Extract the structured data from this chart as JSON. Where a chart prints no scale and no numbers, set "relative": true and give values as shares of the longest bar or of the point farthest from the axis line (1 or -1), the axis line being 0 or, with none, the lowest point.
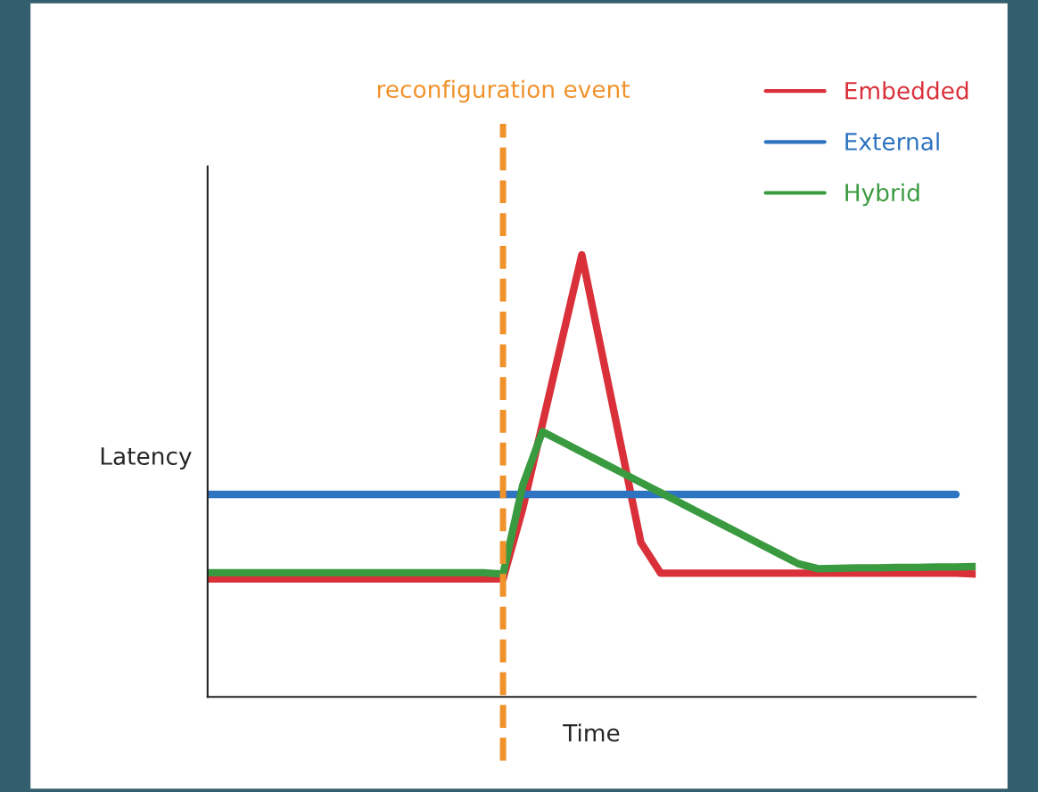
{
  "chart_data": {
    "type": "line",
    "relative": true,
    "xlabel": "Time",
    "ylabel": "Latency",
    "legend": "top right",
    "line_style": "solid",
    "categories": [
      null,
      null,
      null,
      null,
      null,
      null,
      null,
      null,
      null,
      null,
      null,
      null,
      null,
      null,
      null,
      null,
      null,
      null,
      null,
      null,
      null,
      null,
      null,
      null,
      null,
      null,
      null,
      null,
      null,
      null,
      null,
      null,
      null,
      null,
      null,
      null,
      null,
      null,
      null,
      null
    ],
    "series": [
      {
        "name": "Embedded",
        "color": "#d9303a",
        "values": [
          0.267,
          0.267,
          0.267,
          0.267,
          0.267,
          0.267,
          0.267,
          0.267,
          0.267,
          0.267,
          0.267,
          0.267,
          0.267,
          0.267,
          0.267,
          0.267,
          0.426,
          0.617,
          0.809,
          1,
          0.782,
          0.566,
          0.349,
          0.28,
          0.28,
          0.28,
          0.28,
          0.28,
          0.28,
          0.28,
          0.28,
          0.28,
          0.28,
          0.28,
          0.28,
          0.28,
          0.28,
          0.28,
          0.28,
          0.278
        ]
      },
      {
        "name": "External",
        "color": "#2f74c0",
        "values": [
          0.458,
          0.458,
          0.458,
          0.458,
          0.458,
          0.458,
          0.458,
          0.458,
          0.458,
          0.458,
          0.458,
          0.458,
          0.458,
          0.458,
          0.458,
          0.458,
          0.458,
          0.458,
          0.458,
          0.458,
          0.458,
          0.458,
          0.458,
          0.458,
          0.458,
          0.458,
          0.458,
          0.458,
          0.458,
          0.458,
          0.458,
          0.458,
          0.458,
          0.458,
          0.458,
          0.458,
          0.458,
          0.458,
          0.458,
          null
        ]
      },
      {
        "name": "Hybrid",
        "color": "#3a9a3f",
        "values": [
          0.281,
          0.281,
          0.281,
          0.281,
          0.281,
          0.281,
          0.281,
          0.281,
          0.281,
          0.281,
          0.281,
          0.281,
          0.281,
          0.281,
          0.281,
          0.278,
          0.479,
          0.6,
          0.577,
          0.554,
          0.531,
          0.508,
          0.485,
          0.462,
          0.439,
          0.416,
          0.393,
          0.37,
          0.347,
          0.324,
          0.301,
          0.29,
          0.291,
          0.292,
          0.292,
          0.293,
          0.293,
          0.294,
          0.294,
          0.295
        ]
      }
    ],
    "annotations": [
      "reconfiguration event"
    ]
  }
}
